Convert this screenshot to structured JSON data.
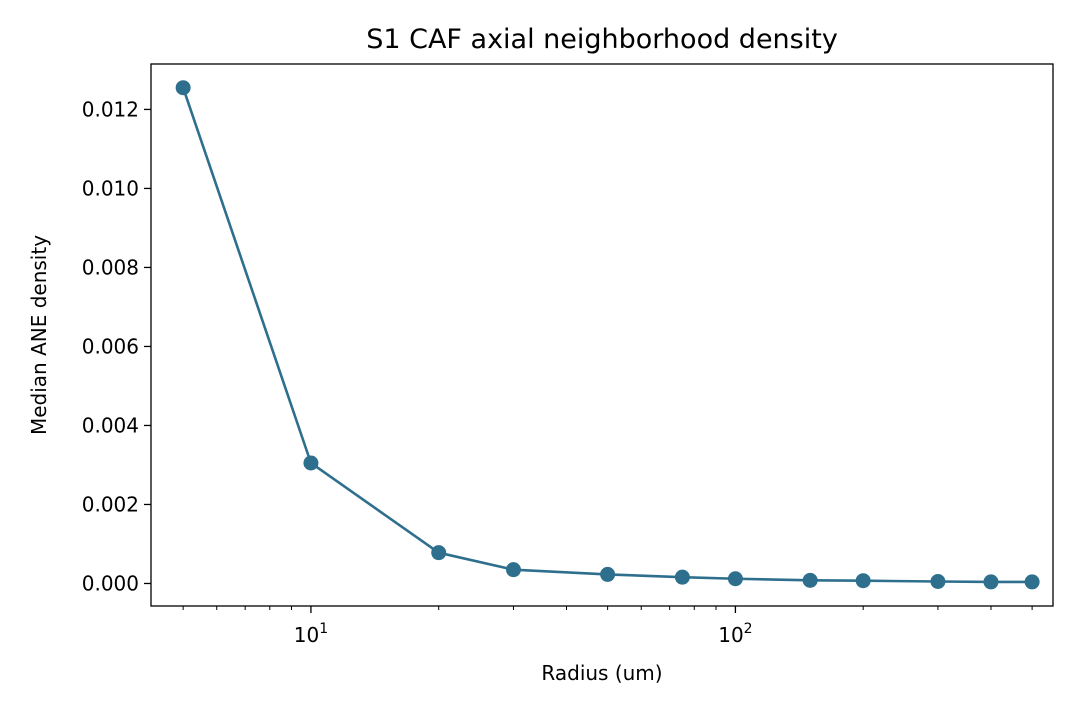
{
  "chart_data": {
    "type": "line",
    "title": "S1 CAF axial neighborhood density",
    "xlabel": "Radius (um)",
    "ylabel": "Median ANE density",
    "xscale": "log",
    "xlim": [
      4.2,
      560
    ],
    "ylim": [
      -0.00057,
      0.01315
    ],
    "grid": false,
    "legend": "none",
    "series": [
      {
        "color": "#2e6f8e",
        "x": [
          5,
          10,
          20,
          30,
          50,
          75,
          100,
          150,
          200,
          300,
          400,
          500
        ],
        "y": [
          0.01255,
          0.00305,
          0.00078,
          0.00035,
          0.00023,
          0.00016,
          0.00012,
          8e-05,
          7e-05,
          5e-05,
          4e-05,
          4e-05
        ]
      }
    ],
    "yticks": [
      0.0,
      0.002,
      0.004,
      0.006,
      0.008,
      0.01,
      0.012
    ],
    "ytick_labels": [
      "0.000",
      "0.002",
      "0.004",
      "0.006",
      "0.008",
      "0.010",
      "0.012"
    ],
    "xticks_major": [
      10,
      100
    ],
    "xtick_labels": [
      {
        "base": "10",
        "exp": "1"
      },
      {
        "base": "10",
        "exp": "2"
      }
    ]
  }
}
